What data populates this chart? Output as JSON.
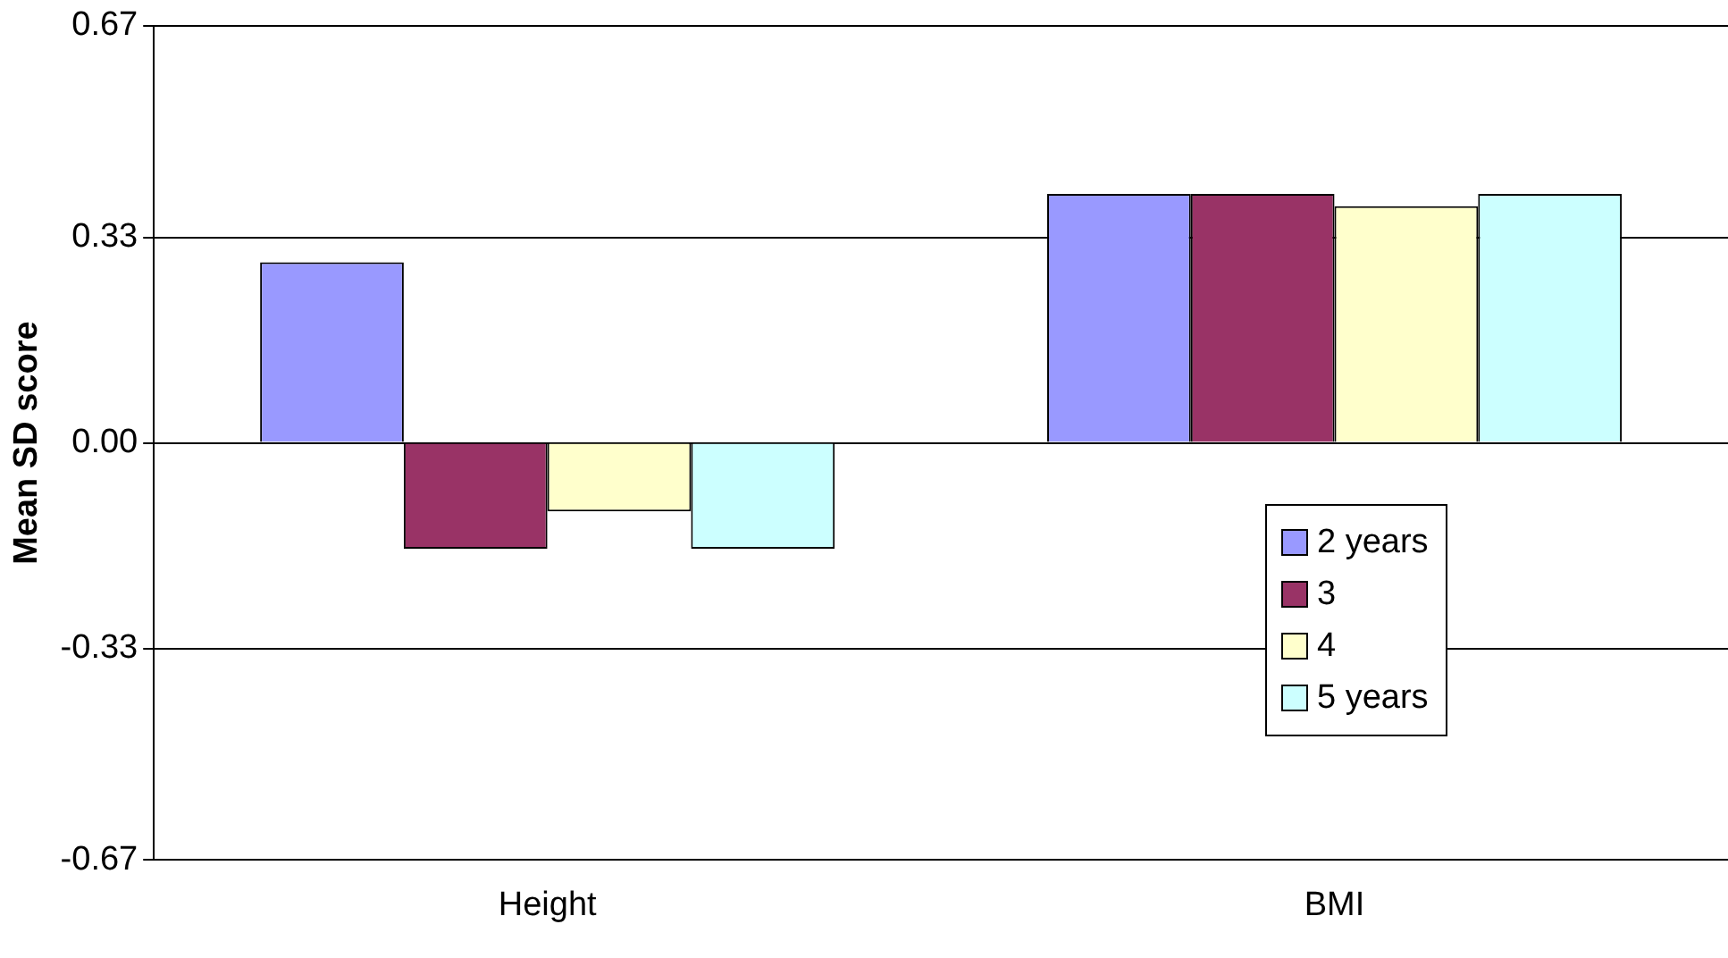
{
  "chart_data": {
    "type": "bar",
    "ylabel": "Mean SD score",
    "categories": [
      "Height",
      "BMI"
    ],
    "series": [
      {
        "name": "2 years",
        "color": "#9999ff",
        "values": [
          0.29,
          0.4
        ]
      },
      {
        "name": "3",
        "color": "#993366",
        "values": [
          -0.17,
          0.4
        ]
      },
      {
        "name": "4",
        "color": "#ffffcc",
        "values": [
          -0.11,
          0.38
        ]
      },
      {
        "name": "5 years",
        "color": "#ccffff",
        "values": [
          -0.17,
          0.4
        ]
      }
    ],
    "ylim": [
      -0.67,
      0.67
    ],
    "yticks": [
      0.67,
      0.33,
      {
        "value": 0,
        "label": "0.00"
      },
      -0.33,
      -0.67
    ],
    "grid": "y",
    "legend": "right"
  }
}
